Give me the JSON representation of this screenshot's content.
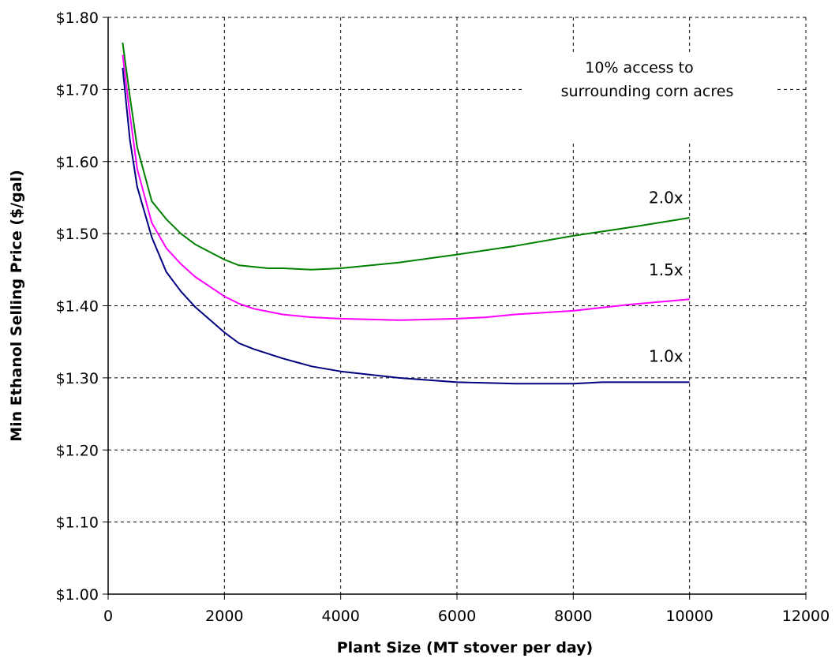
{
  "chart_data": {
    "type": "line",
    "xlabel": "Plant Size (MT stover per day)",
    "ylabel": "Min Ethanol Selling Price ($/gal)",
    "xlim": [
      0,
      12000
    ],
    "ylim": [
      1.0,
      1.8
    ],
    "x_ticks": [
      "0",
      "2000",
      "4000",
      "6000",
      "8000",
      "10000",
      "12000"
    ],
    "y_ticks": [
      "$1.00",
      "$1.10",
      "$1.20",
      "$1.30",
      "$1.40",
      "$1.50",
      "$1.60",
      "$1.70",
      "$1.80"
    ],
    "grid": true,
    "annotation": [
      "10% access to",
      "surrounding corn acres"
    ],
    "series": [
      {
        "name": "2.0x",
        "color": "#008000",
        "points": [
          [
            250,
            1.765
          ],
          [
            375,
            1.69
          ],
          [
            500,
            1.62
          ],
          [
            750,
            1.545
          ],
          [
            1000,
            1.52
          ],
          [
            1250,
            1.5
          ],
          [
            1500,
            1.485
          ],
          [
            2000,
            1.464
          ],
          [
            2250,
            1.456
          ],
          [
            2750,
            1.452
          ],
          [
            3000,
            1.452
          ],
          [
            3500,
            1.45
          ],
          [
            4000,
            1.452
          ],
          [
            5000,
            1.46
          ],
          [
            6000,
            1.471
          ],
          [
            7000,
            1.483
          ],
          [
            8000,
            1.497
          ],
          [
            9000,
            1.509
          ],
          [
            10000,
            1.522
          ]
        ]
      },
      {
        "name": "1.5x",
        "color": "#ff00ff",
        "points": [
          [
            250,
            1.748
          ],
          [
            375,
            1.665
          ],
          [
            500,
            1.59
          ],
          [
            750,
            1.515
          ],
          [
            1000,
            1.48
          ],
          [
            1250,
            1.458
          ],
          [
            1500,
            1.44
          ],
          [
            2000,
            1.413
          ],
          [
            2250,
            1.403
          ],
          [
            2500,
            1.396
          ],
          [
            3000,
            1.388
          ],
          [
            3500,
            1.384
          ],
          [
            4000,
            1.382
          ],
          [
            5000,
            1.38
          ],
          [
            6000,
            1.382
          ],
          [
            6500,
            1.384
          ],
          [
            7000,
            1.388
          ],
          [
            8000,
            1.393
          ],
          [
            9000,
            1.402
          ],
          [
            10000,
            1.409
          ]
        ]
      },
      {
        "name": "1.0x",
        "color": "#000080",
        "points": [
          [
            250,
            1.73
          ],
          [
            375,
            1.63
          ],
          [
            500,
            1.565
          ],
          [
            750,
            1.495
          ],
          [
            1000,
            1.447
          ],
          [
            1250,
            1.42
          ],
          [
            1500,
            1.398
          ],
          [
            2000,
            1.363
          ],
          [
            2250,
            1.348
          ],
          [
            2500,
            1.34
          ],
          [
            3000,
            1.327
          ],
          [
            3500,
            1.316
          ],
          [
            4000,
            1.309
          ],
          [
            5000,
            1.3
          ],
          [
            6000,
            1.294
          ],
          [
            7000,
            1.292
          ],
          [
            8000,
            1.292
          ],
          [
            8500,
            1.294
          ],
          [
            9000,
            1.294
          ],
          [
            10000,
            1.294
          ]
        ]
      }
    ],
    "series_label_positions": [
      {
        "name": "2.0x",
        "x": 10000,
        "y": 1.55
      },
      {
        "name": "1.5x",
        "x": 10000,
        "y": 1.45
      },
      {
        "name": "1.0x",
        "x": 10000,
        "y": 1.33
      }
    ]
  }
}
